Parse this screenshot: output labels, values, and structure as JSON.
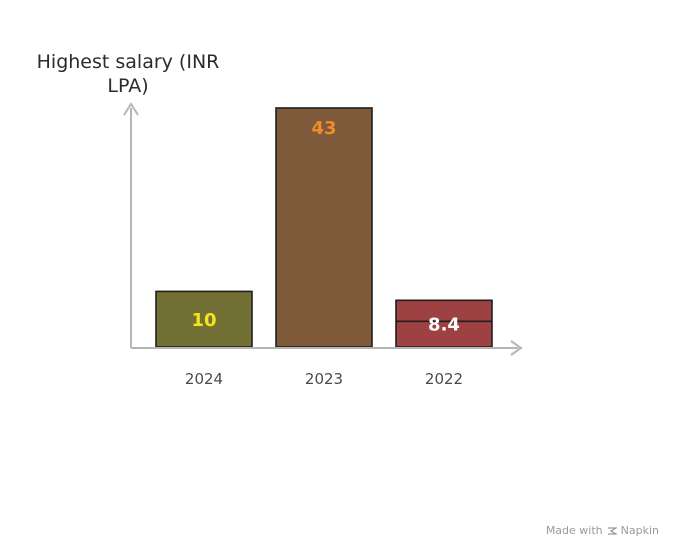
{
  "chart_data": {
    "type": "bar",
    "ylabel": "Highest salary (INR LPA)",
    "ylabel_lines": [
      "Highest salary (INR",
      "LPA)"
    ],
    "xlabel": "",
    "categories": [
      "2024",
      "2023",
      "2022"
    ],
    "values": [
      10,
      43,
      8.4
    ],
    "data_labels": [
      "10",
      "43",
      "8.4"
    ],
    "ylim": [
      0,
      45
    ],
    "grid": false,
    "legend": "none",
    "colors": {
      "bars": [
        "#727034",
        "#7f5a3a",
        "#9d4142"
      ],
      "labels": [
        "#f4e51d",
        "#f08c2b",
        "#ffffff"
      ],
      "outline": "#1f1f1f",
      "axis": "#b5b5b5"
    }
  },
  "watermark": {
    "prefix": "Made with",
    "brand": "Napkin",
    "icon": "napkin-logo-icon"
  }
}
